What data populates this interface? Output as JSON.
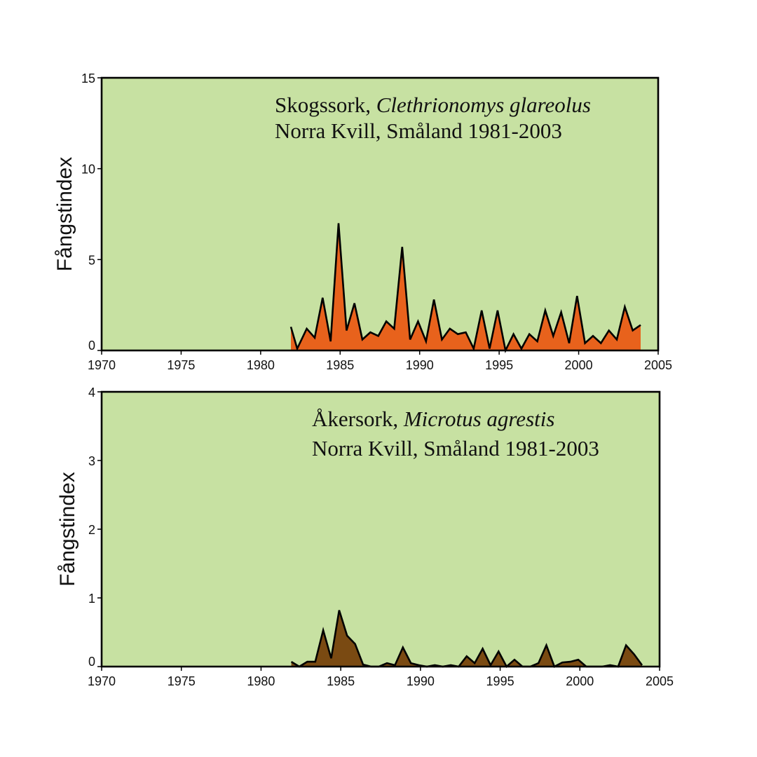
{
  "chart_data": [
    {
      "type": "area",
      "annotation": {
        "line1_prefix": "Skogssork, ",
        "line1_species": "Clethrionomys glareolus",
        "line2": "Norra Kvill, Småland 1981-2003"
      },
      "xlabel": "",
      "ylabel": "Fångstindex",
      "xlim": [
        1970,
        2005
      ],
      "ylim": [
        0,
        15
      ],
      "x_ticks": [
        "1970",
        "1975",
        "1980",
        "1985",
        "1990",
        "1995",
        "2000",
        "2005"
      ],
      "y_ticks": [
        "0",
        "5",
        "10",
        "15"
      ],
      "grid": false,
      "colors": {
        "background": "#c7e1a2",
        "fill": "#e8621c",
        "line": "#000000"
      },
      "series": [
        {
          "x": [
            1981.9,
            1982.3,
            1982.9,
            1983.4,
            1983.9,
            1984.4,
            1984.9,
            1985.4,
            1985.9,
            1986.4,
            1986.9,
            1987.4,
            1987.9,
            1988.4,
            1988.9,
            1989.4,
            1989.9,
            1990.4,
            1990.9,
            1991.4,
            1991.9,
            1992.4,
            1992.9,
            1993.4,
            1993.9,
            1994.4,
            1994.9,
            1995.4,
            1995.9,
            1996.4,
            1996.9,
            1997.4,
            1997.9,
            1998.4,
            1998.9,
            1999.4,
            1999.9,
            2000.4,
            2000.9,
            2001.4,
            2001.9,
            2002.4,
            2002.9,
            2003.4,
            2003.9
          ],
          "values": [
            1.3,
            0.1,
            1.2,
            0.7,
            2.9,
            0.5,
            7.0,
            1.1,
            2.6,
            0.6,
            1.0,
            0.8,
            1.6,
            1.2,
            5.7,
            0.6,
            1.6,
            0.5,
            2.8,
            0.6,
            1.2,
            0.9,
            1.0,
            0.1,
            2.2,
            0.1,
            2.2,
            0.0,
            0.9,
            0.1,
            0.9,
            0.5,
            2.2,
            0.8,
            2.1,
            0.4,
            3.0,
            0.4,
            0.8,
            0.4,
            1.1,
            0.6,
            2.4,
            1.1,
            1.4
          ]
        }
      ]
    },
    {
      "type": "area",
      "annotation": {
        "line1_prefix": "Åkersork, ",
        "line1_species": "Microtus agrestis",
        "line2": "Norra Kvill, Småland 1981-2003"
      },
      "xlabel": "",
      "ylabel": "Fångstindex",
      "xlim": [
        1970,
        2005
      ],
      "ylim": [
        0,
        4
      ],
      "x_ticks": [
        "1970",
        "1975",
        "1980",
        "1985",
        "1990",
        "1995",
        "2000",
        "2005"
      ],
      "y_ticks": [
        "0",
        "1",
        "2",
        "3",
        "4"
      ],
      "grid": false,
      "colors": {
        "background": "#c7e1a2",
        "fill": "#7a4a12",
        "line": "#000000"
      },
      "series": [
        {
          "x": [
            1981.9,
            1982.4,
            1982.9,
            1983.4,
            1983.9,
            1984.4,
            1984.9,
            1985.4,
            1985.9,
            1986.4,
            1986.9,
            1987.4,
            1987.9,
            1988.4,
            1988.9,
            1989.4,
            1989.9,
            1990.4,
            1990.9,
            1991.4,
            1991.9,
            1992.4,
            1992.9,
            1993.4,
            1993.9,
            1994.4,
            1994.9,
            1995.4,
            1995.9,
            1996.4,
            1996.9,
            1997.4,
            1997.9,
            1998.4,
            1998.9,
            1999.4,
            1999.9,
            2000.4,
            2000.9,
            2001.4,
            2001.9,
            2002.4,
            2002.9,
            2003.4,
            2003.9
          ],
          "values": [
            0.07,
            0.0,
            0.07,
            0.07,
            0.53,
            0.12,
            0.82,
            0.45,
            0.33,
            0.03,
            0.0,
            0.0,
            0.05,
            0.02,
            0.28,
            0.05,
            0.02,
            0.0,
            0.02,
            0.0,
            0.02,
            0.0,
            0.15,
            0.05,
            0.26,
            0.02,
            0.22,
            0.0,
            0.1,
            0.0,
            0.0,
            0.05,
            0.31,
            0.0,
            0.06,
            0.07,
            0.1,
            0.0,
            0.0,
            0.0,
            0.02,
            0.0,
            0.31,
            0.18,
            0.02
          ]
        }
      ]
    }
  ]
}
